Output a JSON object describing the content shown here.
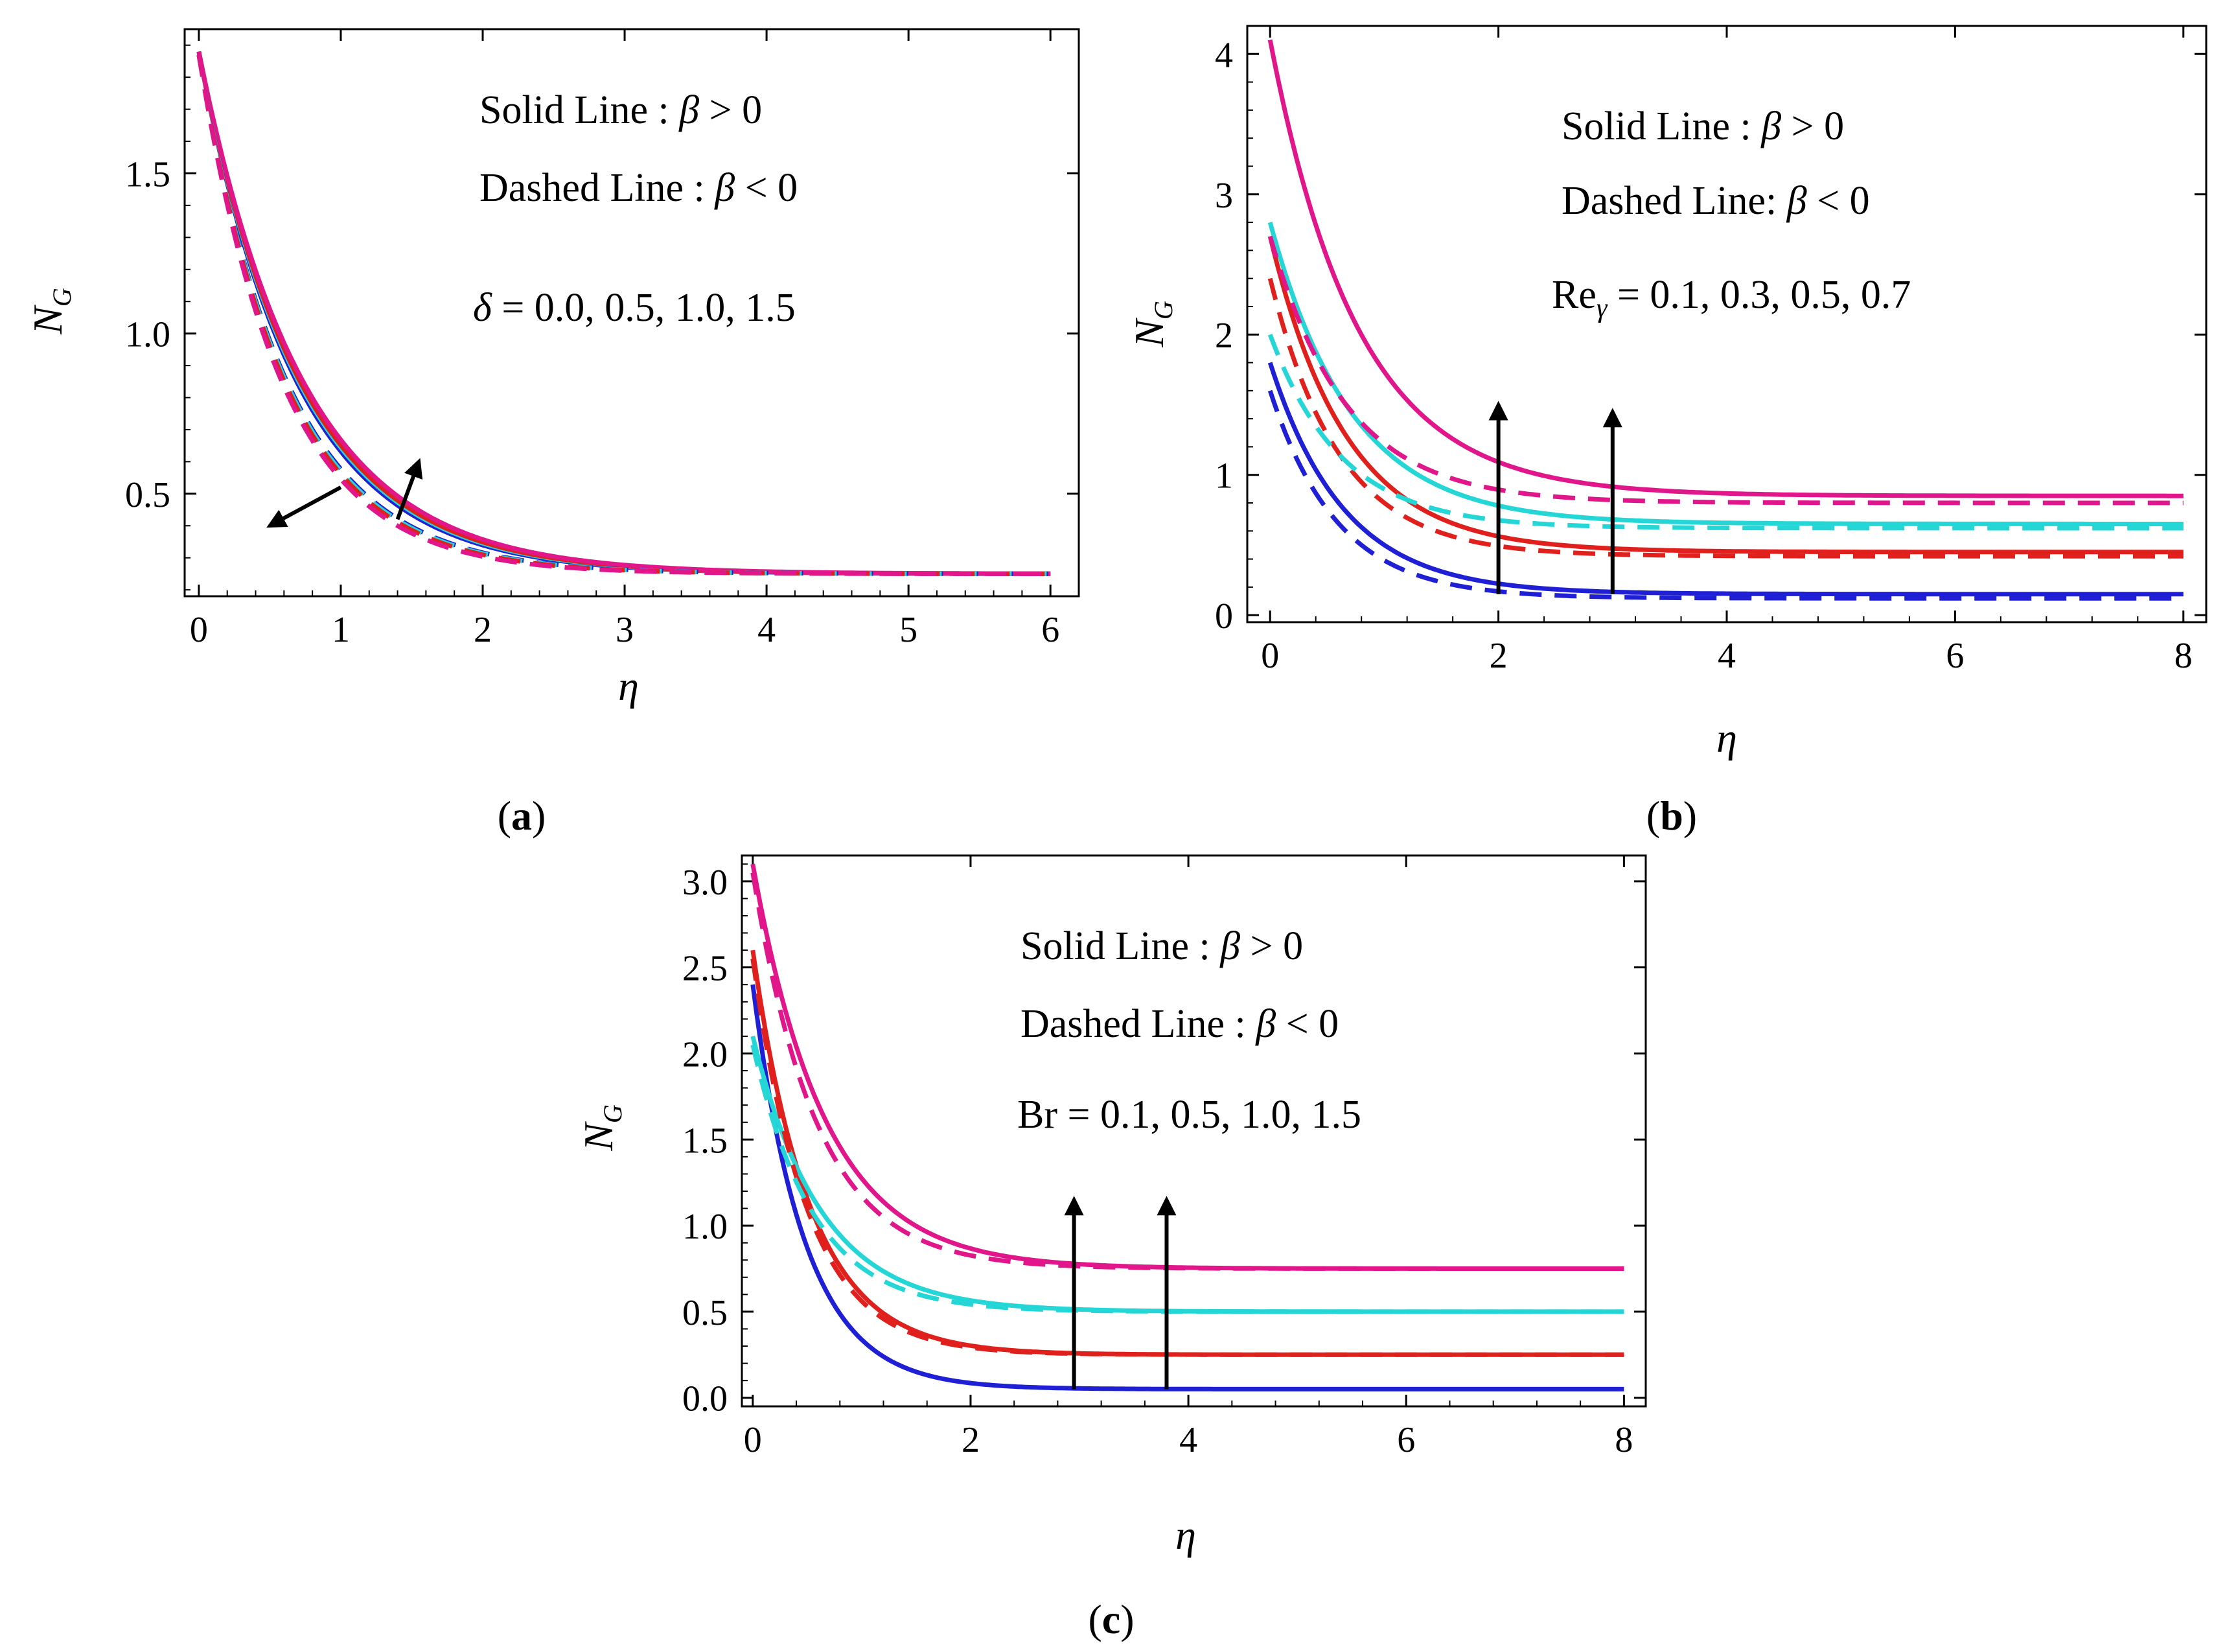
{
  "chart_data": [
    {
      "id": "a",
      "type": "line",
      "caption": "a",
      "xlabel": "η",
      "ylabel": "N",
      "ylabel_sub": "G",
      "xlim": [
        -0.1,
        6.2
      ],
      "ylim": [
        0.18,
        1.95
      ],
      "xticks": [
        "0",
        "1",
        "2",
        "3",
        "4",
        "5",
        "6"
      ],
      "yticks": [
        "0.5",
        "1.0",
        "1.5"
      ],
      "annotations": {
        "solid": [
          "Solid Line : ",
          "β",
          " > 0"
        ],
        "dashed": [
          "Dashed Line : ",
          "β",
          " < 0"
        ],
        "param": [
          "δ",
          " = 0.0, 0.5, 1.0, 1.5"
        ]
      },
      "series": [
        {
          "name": "δ = 0.0",
          "color": "#1f1fd6",
          "style": "solid",
          "y0": 1.88,
          "yinf": 0.25,
          "k": 1.45
        },
        {
          "name": "δ = 0.5",
          "color": "#25d6d6",
          "style": "solid",
          "y0": 1.88,
          "yinf": 0.25,
          "k": 1.42
        },
        {
          "name": "δ = 1.0",
          "color": "#e0201c",
          "style": "solid",
          "y0": 1.88,
          "yinf": 0.25,
          "k": 1.4
        },
        {
          "name": "δ = 1.5",
          "color": "#e0168a",
          "style": "solid",
          "y0": 1.88,
          "yinf": 0.25,
          "k": 1.36
        },
        {
          "name": "δ = 0.0",
          "color": "#1f1fd6",
          "style": "dashed",
          "y0": 1.87,
          "yinf": 0.25,
          "k": 1.6
        },
        {
          "name": "δ = 0.5",
          "color": "#25d6d6",
          "style": "dashed",
          "y0": 1.87,
          "yinf": 0.25,
          "k": 1.62
        },
        {
          "name": "δ = 1.0",
          "color": "#e0201c",
          "style": "dashed",
          "y0": 1.87,
          "yinf": 0.25,
          "k": 1.65
        },
        {
          "name": "δ = 1.5",
          "color": "#e0168a",
          "style": "dashed",
          "y0": 1.87,
          "yinf": 0.25,
          "k": 1.7
        }
      ],
      "arrows": [
        {
          "from": [
            1.0,
            0.52
          ],
          "to": [
            0.5,
            0.4
          ]
        },
        {
          "from": [
            1.4,
            0.42
          ],
          "to": [
            1.55,
            0.6
          ]
        }
      ]
    },
    {
      "id": "b",
      "type": "line",
      "caption": "b",
      "xlabel": "η",
      "ylabel": "N",
      "ylabel_sub": "G",
      "xlim": [
        -0.2,
        8.2
      ],
      "ylim": [
        -0.05,
        4.2
      ],
      "xticks": [
        "0",
        "2",
        "4",
        "6",
        "8"
      ],
      "yticks": [
        "0",
        "1",
        "2",
        "3",
        "4"
      ],
      "annotations": {
        "solid": [
          "Solid Line : ",
          "β",
          " > 0"
        ],
        "dashed": [
          "Dashed Line: ",
          "β",
          " < 0"
        ],
        "param": [
          "Re",
          "γ",
          "  =  0.1,  0.3,  0.5,  0.7"
        ]
      },
      "series": [
        {
          "name": "Reγ = 0.1",
          "color": "#1f1fd6",
          "style": "solid",
          "y0": 1.8,
          "yinf": 0.15,
          "k": 1.55
        },
        {
          "name": "Reγ = 0.3",
          "color": "#e0201c",
          "style": "solid",
          "y0": 2.7,
          "yinf": 0.45,
          "k": 1.5
        },
        {
          "name": "Reγ = 0.5",
          "color": "#25d6d6",
          "style": "solid",
          "y0": 2.8,
          "yinf": 0.65,
          "k": 1.4
        },
        {
          "name": "Reγ = 0.7",
          "color": "#e0168a",
          "style": "solid",
          "y0": 4.1,
          "yinf": 0.85,
          "k": 1.3
        },
        {
          "name": "Reγ = 0.1",
          "color": "#1f1fd6",
          "style": "dashed",
          "y0": 1.6,
          "yinf": 0.12,
          "k": 1.7
        },
        {
          "name": "Reγ = 0.3",
          "color": "#e0201c",
          "style": "dashed",
          "y0": 2.4,
          "yinf": 0.42,
          "k": 1.65
        },
        {
          "name": "Reγ = 0.5",
          "color": "#25d6d6",
          "style": "dashed",
          "y0": 2.0,
          "yinf": 0.62,
          "k": 1.6
        },
        {
          "name": "Reγ = 0.7",
          "color": "#e0168a",
          "style": "dashed",
          "y0": 2.7,
          "yinf": 0.8,
          "k": 1.5
        }
      ],
      "arrows": [
        {
          "from": [
            2.0,
            0.15
          ],
          "to": [
            2.0,
            1.5
          ]
        },
        {
          "from": [
            3.0,
            0.15
          ],
          "to": [
            3.0,
            1.45
          ]
        }
      ]
    },
    {
      "id": "c",
      "type": "line",
      "caption": "c",
      "xlabel": "η",
      "ylabel": "N",
      "ylabel_sub": "G",
      "xlim": [
        -0.1,
        8.2
      ],
      "ylim": [
        -0.05,
        3.15
      ],
      "xticks": [
        "0",
        "2",
        "4",
        "6",
        "8"
      ],
      "yticks": [
        "0.0",
        "0.5",
        "1.0",
        "1.5",
        "2.0",
        "2.5",
        "3.0"
      ],
      "annotations": {
        "solid": [
          "Solid Line : ",
          "β",
          " > 0"
        ],
        "dashed": [
          "Dashed Line : ",
          "β",
          " < 0"
        ],
        "param": [
          "Br = 0.1, 0.5, 1.0, 1.5"
        ]
      },
      "series": [
        {
          "name": "Br = 0.1",
          "color": "#1f1fd6",
          "style": "solid",
          "y0": 2.4,
          "yinf": 0.05,
          "k": 2.1
        },
        {
          "name": "Br = 0.5",
          "color": "#e0201c",
          "style": "solid",
          "y0": 2.6,
          "yinf": 0.25,
          "k": 1.9
        },
        {
          "name": "Br = 1.0",
          "color": "#25d6d6",
          "style": "solid",
          "y0": 2.1,
          "yinf": 0.5,
          "k": 1.6
        },
        {
          "name": "Br = 1.5",
          "color": "#e0168a",
          "style": "solid",
          "y0": 3.1,
          "yinf": 0.75,
          "k": 1.5
        },
        {
          "name": "Br = 0.5",
          "color": "#e0201c",
          "style": "dashed",
          "y0": 2.55,
          "yinf": 0.25,
          "k": 2.0
        },
        {
          "name": "Br = 1.0",
          "color": "#25d6d6",
          "style": "dashed",
          "y0": 2.05,
          "yinf": 0.5,
          "k": 1.8
        },
        {
          "name": "Br = 1.5",
          "color": "#e0168a",
          "style": "dashed",
          "y0": 3.05,
          "yinf": 0.75,
          "k": 1.7
        }
      ],
      "arrows": [
        {
          "from": [
            2.95,
            0.05
          ],
          "to": [
            2.95,
            1.15
          ]
        },
        {
          "from": [
            3.8,
            0.05
          ],
          "to": [
            3.8,
            1.15
          ]
        }
      ]
    }
  ]
}
